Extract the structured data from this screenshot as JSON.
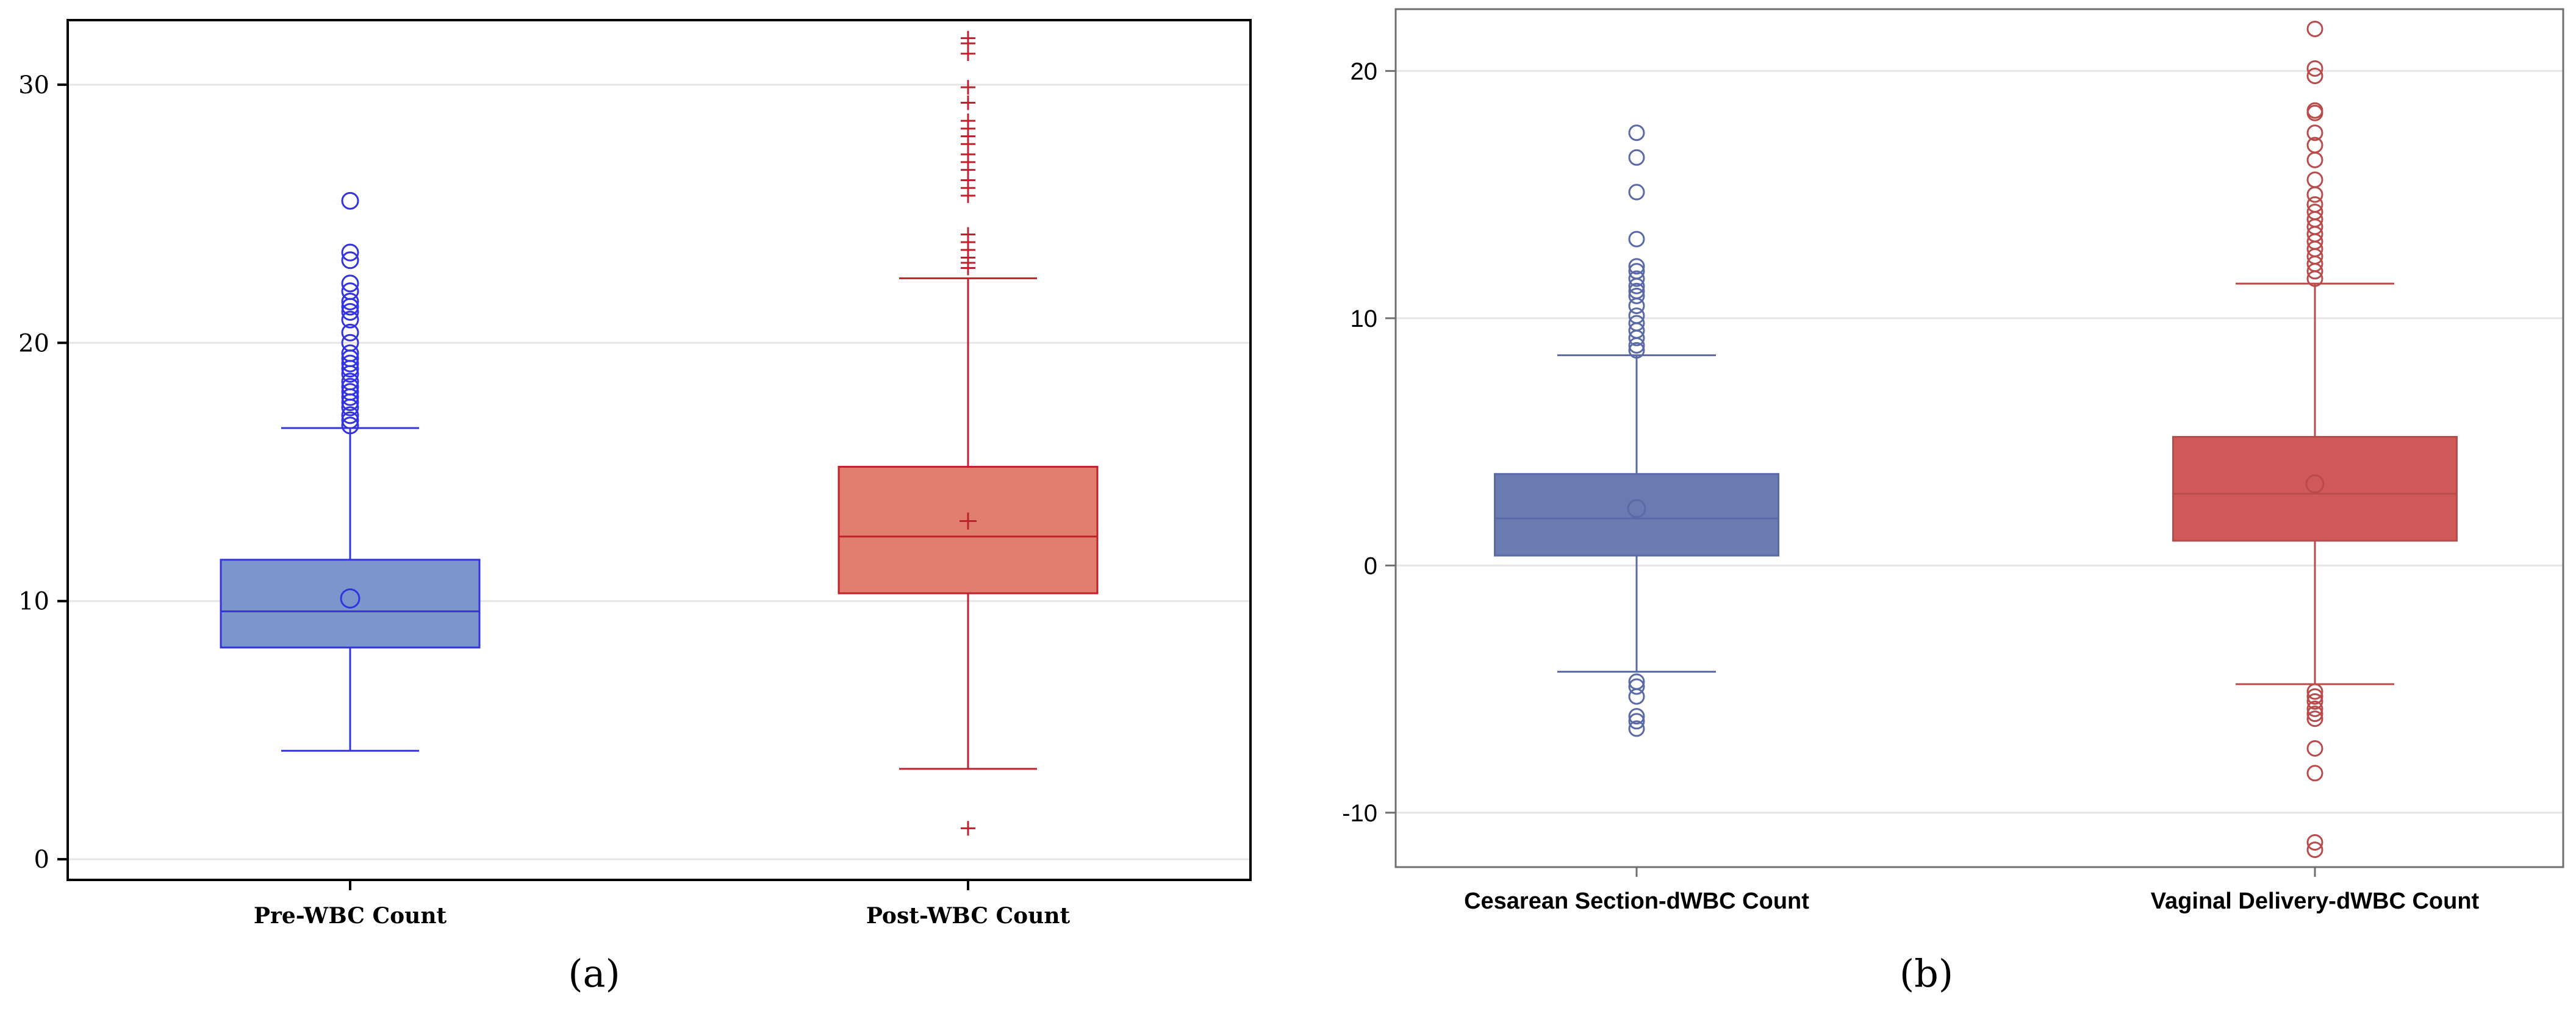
{
  "panel_labels": [
    "(a)",
    "(b)"
  ],
  "chart_data": [
    {
      "type": "box",
      "panel": "(a)",
      "title": "",
      "xlabel": "",
      "ylabel": "",
      "ylim": [
        -0.8,
        32.5
      ],
      "yticks": [
        0,
        10,
        20,
        30
      ],
      "categories": [
        "Pre-WBC Count",
        "Post-WBC Count"
      ],
      "series": [
        {
          "name": "Pre-WBC Count",
          "color": "#7b96cc",
          "stroke": "#3333e0",
          "mean_marker": "circle",
          "outlier_marker": "circle",
          "min_whisker": 4.2,
          "q1": 8.2,
          "median": 9.6,
          "q3": 11.6,
          "max_whisker": 16.7,
          "mean": 10.1,
          "outliers": [
            16.8,
            17.0,
            17.2,
            17.5,
            17.7,
            17.9,
            18.1,
            18.3,
            18.5,
            18.8,
            19.0,
            19.2,
            19.4,
            19.6,
            20.0,
            20.4,
            20.9,
            21.2,
            21.4,
            21.6,
            22.0,
            22.3,
            23.2,
            23.5,
            25.5
          ]
        },
        {
          "name": "Post-WBC Count",
          "color": "#e07f6e",
          "stroke": "#c0202c",
          "mean_marker": "plus",
          "outlier_marker": "plus",
          "min_whisker": 3.5,
          "q1": 10.3,
          "median": 12.5,
          "q3": 15.2,
          "max_whisker": 22.5,
          "mean": 13.1,
          "outliers": [
            1.2,
            22.9,
            23.1,
            23.3,
            23.6,
            23.9,
            24.2,
            25.7,
            26.0,
            26.3,
            26.7,
            27.0,
            27.3,
            27.7,
            28.0,
            28.3,
            28.6,
            29.3,
            29.9,
            31.2,
            31.6,
            31.8
          ]
        }
      ]
    },
    {
      "type": "box",
      "panel": "(b)",
      "title": "",
      "xlabel": "",
      "ylabel": "",
      "ylim": [
        -12.2,
        22.5
      ],
      "yticks": [
        -10,
        0,
        10,
        20
      ],
      "categories": [
        "Cesarean Section-dWBC Count",
        "Vaginal Delivery-dWBC Count"
      ],
      "series": [
        {
          "name": "Cesarean Section-dWBC Count",
          "color": "#6a7bb1",
          "stroke": "#5a6aa6",
          "mean_marker": "circle",
          "outlier_marker": "circle",
          "min_whisker": -4.3,
          "q1": 0.4,
          "median": 1.9,
          "q3": 3.7,
          "max_whisker": 8.5,
          "mean": 2.3,
          "outliers": [
            -6.6,
            -6.3,
            -6.1,
            -5.3,
            -4.9,
            -4.7,
            8.7,
            8.9,
            9.2,
            9.5,
            9.8,
            10.1,
            10.5,
            10.9,
            11.1,
            11.3,
            11.6,
            11.9,
            12.1,
            13.2,
            15.1,
            16.5,
            17.5
          ]
        },
        {
          "name": "Vaginal Delivery-dWBC Count",
          "color": "#d05a5a",
          "stroke": "#b94b4b",
          "mean_marker": "circle",
          "outlier_marker": "circle",
          "min_whisker": -4.8,
          "q1": 1.0,
          "median": 2.9,
          "q3": 5.2,
          "max_whisker": 11.4,
          "mean": 3.3,
          "outliers": [
            -11.5,
            -11.2,
            -8.4,
            -7.4,
            -6.2,
            -6.0,
            -5.8,
            -5.5,
            -5.3,
            -5.1,
            11.6,
            11.9,
            12.2,
            12.5,
            12.8,
            13.1,
            13.4,
            13.7,
            14.0,
            14.3,
            14.6,
            15.0,
            15.6,
            16.4,
            17.0,
            17.5,
            18.3,
            18.4,
            19.8,
            20.1,
            21.7
          ]
        }
      ]
    }
  ]
}
